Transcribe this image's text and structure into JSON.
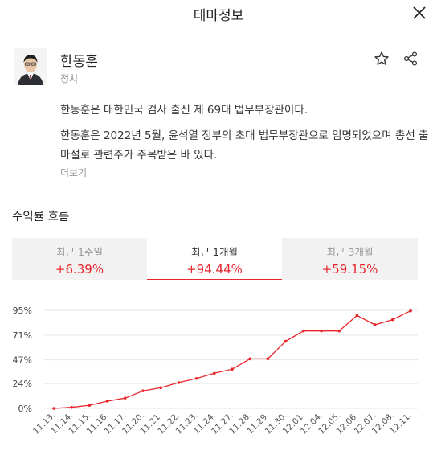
{
  "header": {
    "title": "테마정보"
  },
  "profile": {
    "name": "한동훈",
    "category": "정치",
    "description_1": "한동훈은 대한민국 검사 출신 제 69대 법무부장관이다.",
    "description_2": "한동훈은 2022년 5월, 윤석열 정부의 초대 법무부장관으로 임명되었으며 총선 출마설로 관련주가 주목받은 바 있다.",
    "more_label": "더보기"
  },
  "returns": {
    "title": "수익률 흐름",
    "tabs": [
      {
        "label": "최근 1주일",
        "value": "+6.39%",
        "active": false
      },
      {
        "label": "최근 1개월",
        "value": "+94.44%",
        "active": true
      },
      {
        "label": "최근 3개월",
        "value": "+59.15%",
        "active": false
      }
    ]
  },
  "colors": {
    "accent": "#e8262d",
    "tab_bg": "#f2f2f2",
    "grid": "#e6e6e6"
  },
  "chart_data": {
    "type": "line",
    "categories": [
      "11.13.",
      "11.14.",
      "11.15.",
      "11.16.",
      "11.17.",
      "11.20.",
      "11.21.",
      "11.22.",
      "11.23.",
      "11.24.",
      "11.27.",
      "11.28.",
      "11.29.",
      "11.30.",
      "12.01.",
      "12.04.",
      "12.05.",
      "12.06.",
      "12.07.",
      "12.08.",
      "12.11."
    ],
    "series": [
      {
        "values": [
          0,
          1,
          3,
          7,
          10,
          17,
          20,
          25,
          29,
          34,
          38,
          48,
          48,
          65,
          75,
          75,
          75,
          90,
          81,
          86,
          94.44
        ]
      }
    ],
    "yticks": [
      0,
      24,
      47,
      71,
      95
    ],
    "ytick_labels": [
      "0%",
      "24%",
      "47%",
      "71%",
      "95%"
    ],
    "ylim": [
      0,
      95
    ],
    "grid": true
  }
}
